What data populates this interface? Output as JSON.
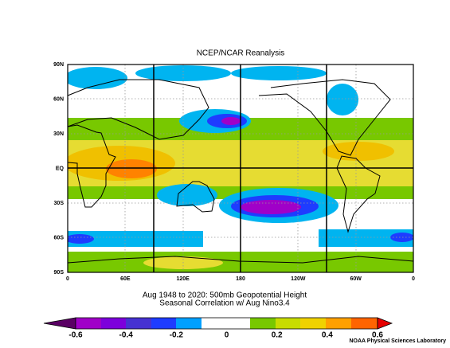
{
  "map": {
    "title": "NCEP/NCAR Reanalysis",
    "lat_labels": [
      "90N",
      "60N",
      "30N",
      "EQ",
      "30S",
      "60S",
      "90S"
    ],
    "lon_labels": [
      "0",
      "60E",
      "120E",
      "180",
      "120W",
      "60W",
      "0"
    ],
    "caption": [
      "Aug 1948 to 2020: 500mb Geopotential Height",
      "Seasonal Correlation w/ Aug Nino3.4"
    ],
    "colorbar_labels": [
      "-0.6",
      "-0.4",
      "-0.2",
      "0",
      "0.2",
      "0.4",
      "0.6"
    ],
    "footer": "NOAA Physical Sciences Laboratory"
  }
}
